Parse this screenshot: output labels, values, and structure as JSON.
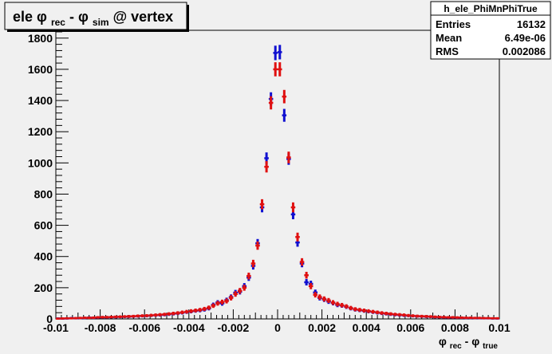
{
  "chart_data": {
    "type": "scatter",
    "title_parts": {
      "t1": "ele ",
      "phi1": "φ",
      "sub1": "rec",
      "t2": " - ",
      "phi2": "φ",
      "sub2": "sim",
      "t3": " @ vertex"
    },
    "xlabel_parts": {
      "phi1": "φ",
      "sub1": "rec",
      "mid": " - ",
      "phi2": "φ",
      "sub2": "true"
    },
    "ylabel": "",
    "xlim": [
      -0.01,
      0.01
    ],
    "ylim": [
      0,
      1850
    ],
    "x_ticks": [
      {
        "v": -0.01,
        "label": "-0.01"
      },
      {
        "v": -0.008,
        "label": "-0.008"
      },
      {
        "v": -0.006,
        "label": "-0.006"
      },
      {
        "v": -0.004,
        "label": "-0.004"
      },
      {
        "v": -0.002,
        "label": "-0.002"
      },
      {
        "v": 0,
        "label": "0"
      },
      {
        "v": 0.002,
        "label": "0.002"
      },
      {
        "v": 0.004,
        "label": "0.004"
      },
      {
        "v": 0.006,
        "label": "0.006"
      },
      {
        "v": 0.008,
        "label": "0.008"
      },
      {
        "v": 0.01,
        "label": "0.01"
      }
    ],
    "y_ticks": [
      {
        "v": 0,
        "label": "0"
      },
      {
        "v": 200,
        "label": "200"
      },
      {
        "v": 400,
        "label": "400"
      },
      {
        "v": 600,
        "label": "600"
      },
      {
        "v": 800,
        "label": "800"
      },
      {
        "v": 1000,
        "label": "1000"
      },
      {
        "v": 1200,
        "label": "1200"
      },
      {
        "v": 1400,
        "label": "1400"
      },
      {
        "v": 1600,
        "label": "1600"
      },
      {
        "v": 1800,
        "label": "1800"
      }
    ],
    "grid": false,
    "stats_box": {
      "name": "h_ele_PhiMnPhiTrue",
      "rows": [
        {
          "label": "Entries",
          "value": "16132"
        },
        {
          "label": "Mean",
          "value": "6.49e-06"
        },
        {
          "label": "RMS",
          "value": "0.002086"
        }
      ]
    },
    "bin_width": 0.0002,
    "series": [
      {
        "color": "#1010d0",
        "points": [
          [
            -0.0099,
            3
          ],
          [
            -0.0097,
            2
          ],
          [
            -0.0095,
            3
          ],
          [
            -0.0093,
            5
          ],
          [
            -0.0091,
            4
          ],
          [
            -0.0089,
            5
          ],
          [
            -0.0087,
            6
          ],
          [
            -0.0085,
            8
          ],
          [
            -0.0083,
            7
          ],
          [
            -0.0081,
            9
          ],
          [
            -0.0079,
            10
          ],
          [
            -0.0077,
            10
          ],
          [
            -0.0075,
            11
          ],
          [
            -0.0073,
            12
          ],
          [
            -0.0071,
            13
          ],
          [
            -0.0069,
            14
          ],
          [
            -0.0067,
            15
          ],
          [
            -0.0065,
            16
          ],
          [
            -0.0063,
            18
          ],
          [
            -0.0061,
            19
          ],
          [
            -0.0059,
            20
          ],
          [
            -0.0057,
            22
          ],
          [
            -0.0055,
            24
          ],
          [
            -0.0053,
            25
          ],
          [
            -0.0051,
            27
          ],
          [
            -0.0049,
            30
          ],
          [
            -0.0047,
            33
          ],
          [
            -0.0045,
            36
          ],
          [
            -0.0043,
            40
          ],
          [
            -0.0041,
            44
          ],
          [
            -0.0039,
            48
          ],
          [
            -0.0037,
            52
          ],
          [
            -0.0035,
            55
          ],
          [
            -0.0033,
            60
          ],
          [
            -0.0031,
            68
          ],
          [
            -0.0029,
            90
          ],
          [
            -0.0027,
            105
          ],
          [
            -0.0025,
            100
          ],
          [
            -0.0023,
            120
          ],
          [
            -0.0021,
            140
          ],
          [
            -0.0019,
            168
          ],
          [
            -0.0017,
            175
          ],
          [
            -0.0015,
            210
          ],
          [
            -0.0013,
            265
          ],
          [
            -0.0011,
            340
          ],
          [
            -0.0009,
            485
          ],
          [
            -0.0007,
            715
          ],
          [
            -0.0005,
            1030
          ],
          [
            -0.0003,
            1410
          ],
          [
            -0.0001,
            1705
          ],
          [
            0.0001,
            1710
          ],
          [
            0.0003,
            1305
          ],
          [
            0.0005,
            1025
          ],
          [
            0.0007,
            670
          ],
          [
            0.0009,
            490
          ],
          [
            0.0011,
            355
          ],
          [
            0.0013,
            235
          ],
          [
            0.0015,
            225
          ],
          [
            0.0017,
            170
          ],
          [
            0.0019,
            135
          ],
          [
            0.0021,
            125
          ],
          [
            0.0023,
            112
          ],
          [
            0.0025,
            102
          ],
          [
            0.0027,
            90
          ],
          [
            0.0029,
            86
          ],
          [
            0.0031,
            78
          ],
          [
            0.0033,
            68
          ],
          [
            0.0035,
            60
          ],
          [
            0.0037,
            56
          ],
          [
            0.0039,
            52
          ],
          [
            0.0041,
            48
          ],
          [
            0.0043,
            44
          ],
          [
            0.0045,
            40
          ],
          [
            0.0047,
            36
          ],
          [
            0.0049,
            33
          ],
          [
            0.0051,
            30
          ],
          [
            0.0053,
            27
          ],
          [
            0.0055,
            25
          ],
          [
            0.0057,
            23
          ],
          [
            0.0059,
            21
          ],
          [
            0.0061,
            19
          ],
          [
            0.0063,
            17
          ],
          [
            0.0065,
            16
          ],
          [
            0.0067,
            15
          ],
          [
            0.0069,
            14
          ],
          [
            0.0071,
            12
          ],
          [
            0.0073,
            11
          ],
          [
            0.0075,
            10
          ],
          [
            0.0077,
            9
          ],
          [
            0.0079,
            9
          ],
          [
            0.0081,
            8
          ],
          [
            0.0083,
            7
          ],
          [
            0.0085,
            6
          ],
          [
            0.0087,
            6
          ],
          [
            0.0089,
            5
          ],
          [
            0.0091,
            5
          ],
          [
            0.0093,
            4
          ],
          [
            0.0095,
            4
          ],
          [
            0.0097,
            3
          ],
          [
            0.0099,
            3
          ]
        ]
      },
      {
        "color": "#e01010",
        "points": [
          [
            -0.0099,
            2
          ],
          [
            -0.0097,
            3
          ],
          [
            -0.0095,
            4
          ],
          [
            -0.0093,
            4
          ],
          [
            -0.0091,
            5
          ],
          [
            -0.0089,
            6
          ],
          [
            -0.0087,
            7
          ],
          [
            -0.0085,
            7
          ],
          [
            -0.0083,
            8
          ],
          [
            -0.0081,
            10
          ],
          [
            -0.0079,
            11
          ],
          [
            -0.0077,
            11
          ],
          [
            -0.0075,
            12
          ],
          [
            -0.0073,
            13
          ],
          [
            -0.0071,
            14
          ],
          [
            -0.0069,
            15
          ],
          [
            -0.0067,
            16
          ],
          [
            -0.0065,
            17
          ],
          [
            -0.0063,
            19
          ],
          [
            -0.0061,
            20
          ],
          [
            -0.0059,
            21
          ],
          [
            -0.0057,
            23
          ],
          [
            -0.0055,
            25
          ],
          [
            -0.0053,
            27
          ],
          [
            -0.0051,
            29
          ],
          [
            -0.0049,
            32
          ],
          [
            -0.0047,
            35
          ],
          [
            -0.0045,
            38
          ],
          [
            -0.0043,
            42
          ],
          [
            -0.0041,
            46
          ],
          [
            -0.0039,
            50
          ],
          [
            -0.0037,
            54
          ],
          [
            -0.0035,
            58
          ],
          [
            -0.0033,
            64
          ],
          [
            -0.0031,
            72
          ],
          [
            -0.0029,
            85
          ],
          [
            -0.0027,
            100
          ],
          [
            -0.0025,
            108
          ],
          [
            -0.0023,
            115
          ],
          [
            -0.0021,
            135
          ],
          [
            -0.0019,
            160
          ],
          [
            -0.0017,
            180
          ],
          [
            -0.0015,
            200
          ],
          [
            -0.0013,
            275
          ],
          [
            -0.0011,
            355
          ],
          [
            -0.0009,
            470
          ],
          [
            -0.0007,
            735
          ],
          [
            -0.0005,
            975
          ],
          [
            -0.0003,
            1385
          ],
          [
            -0.0001,
            1600
          ],
          [
            0.0001,
            1600
          ],
          [
            0.0003,
            1425
          ],
          [
            0.0005,
            1035
          ],
          [
            0.0007,
            715
          ],
          [
            0.0009,
            525
          ],
          [
            0.0011,
            365
          ],
          [
            0.0013,
            280
          ],
          [
            0.0015,
            210
          ],
          [
            0.0017,
            155
          ],
          [
            0.0019,
            140
          ],
          [
            0.0021,
            128
          ],
          [
            0.0023,
            118
          ],
          [
            0.0025,
            105
          ],
          [
            0.0027,
            95
          ],
          [
            0.0029,
            88
          ],
          [
            0.0031,
            80
          ],
          [
            0.0033,
            70
          ],
          [
            0.0035,
            62
          ],
          [
            0.0037,
            58
          ],
          [
            0.0039,
            54
          ],
          [
            0.0041,
            50
          ],
          [
            0.0043,
            46
          ],
          [
            0.0045,
            42
          ],
          [
            0.0047,
            38
          ],
          [
            0.0049,
            35
          ],
          [
            0.0051,
            32
          ],
          [
            0.0053,
            29
          ],
          [
            0.0055,
            27
          ],
          [
            0.0057,
            25
          ],
          [
            0.0059,
            22
          ],
          [
            0.0061,
            20
          ],
          [
            0.0063,
            18
          ],
          [
            0.0065,
            17
          ],
          [
            0.0067,
            16
          ],
          [
            0.0069,
            15
          ],
          [
            0.0071,
            13
          ],
          [
            0.0073,
            12
          ],
          [
            0.0075,
            11
          ],
          [
            0.0077,
            10
          ],
          [
            0.0079,
            10
          ],
          [
            0.0081,
            9
          ],
          [
            0.0083,
            8
          ],
          [
            0.0085,
            7
          ],
          [
            0.0087,
            7
          ],
          [
            0.0089,
            6
          ],
          [
            0.0091,
            6
          ],
          [
            0.0093,
            5
          ],
          [
            0.0095,
            5
          ],
          [
            0.0097,
            4
          ],
          [
            0.0099,
            4
          ]
        ]
      }
    ]
  }
}
